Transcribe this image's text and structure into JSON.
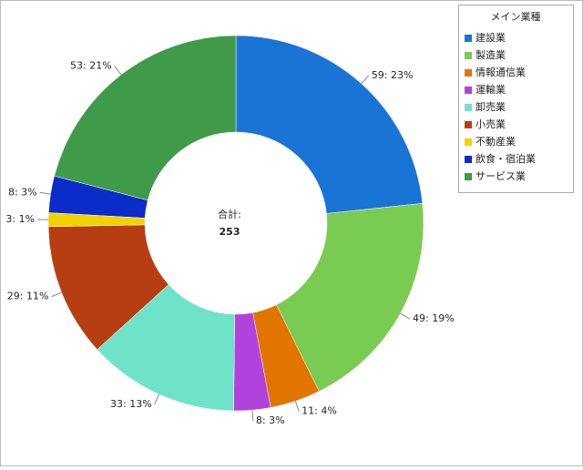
{
  "chart_data": {
    "type": "donut",
    "center_label": "合計:",
    "total": 253,
    "legend_title": "メイン業種",
    "categories": [
      "建設業",
      "製造業",
      "情報通信業",
      "運輸業",
      "卸売業",
      "小売業",
      "不動産業",
      "飲食・宿泊業",
      "サービス業"
    ],
    "values": [
      59,
      49,
      11,
      8,
      33,
      29,
      3,
      8,
      53
    ],
    "value_labels": [
      "59: 23%",
      "49: 19%",
      "11: 4%",
      "8: 3%",
      "33: 13%",
      "29: 11%",
      "3: 1%",
      "8: 3%",
      "53: 21%"
    ],
    "colors": [
      "#1a74d6",
      "#7acb52",
      "#e27400",
      "#b142dc",
      "#6fe3c9",
      "#b73e12",
      "#f2d300",
      "#0b2cc8",
      "#3f9a4a"
    ]
  }
}
